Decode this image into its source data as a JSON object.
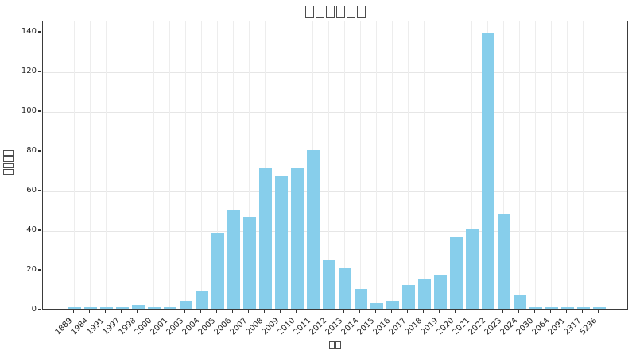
{
  "chart_data": {
    "type": "bar",
    "title": "□□□□□□",
    "xlabel": "□□",
    "ylabel": "□□□□",
    "categories": [
      "1889",
      "1984",
      "1991",
      "1997",
      "1998",
      "2000",
      "2001",
      "2003",
      "2004",
      "2005",
      "2006",
      "2007",
      "2008",
      "2009",
      "2010",
      "2011",
      "2012",
      "2013",
      "2014",
      "2015",
      "2016",
      "2017",
      "2018",
      "2019",
      "2020",
      "2021",
      "2022",
      "2023",
      "2024",
      "2030",
      "2064",
      "2091",
      "2317",
      "5236"
    ],
    "values": [
      1,
      1,
      1,
      1,
      2,
      1,
      1,
      4,
      9,
      38,
      50,
      46,
      71,
      67,
      71,
      80,
      25,
      21,
      10,
      3,
      4,
      12,
      15,
      17,
      36,
      40,
      139,
      48,
      7,
      1,
      1,
      1,
      1,
      1
    ],
    "yticks": [
      0,
      20,
      40,
      60,
      80,
      100,
      120,
      140
    ],
    "ylim": [
      0,
      145.6
    ],
    "bar_color": "#87CEEB",
    "grid": true,
    "legend": "none",
    "note_title_glyphs": "missing-glyph tofu boxes (6)",
    "note_ylabel_glyphs": "missing-glyph tofu boxes (4), rotated",
    "note_xlabel_glyphs": "missing-glyph tofu boxes (2)"
  }
}
